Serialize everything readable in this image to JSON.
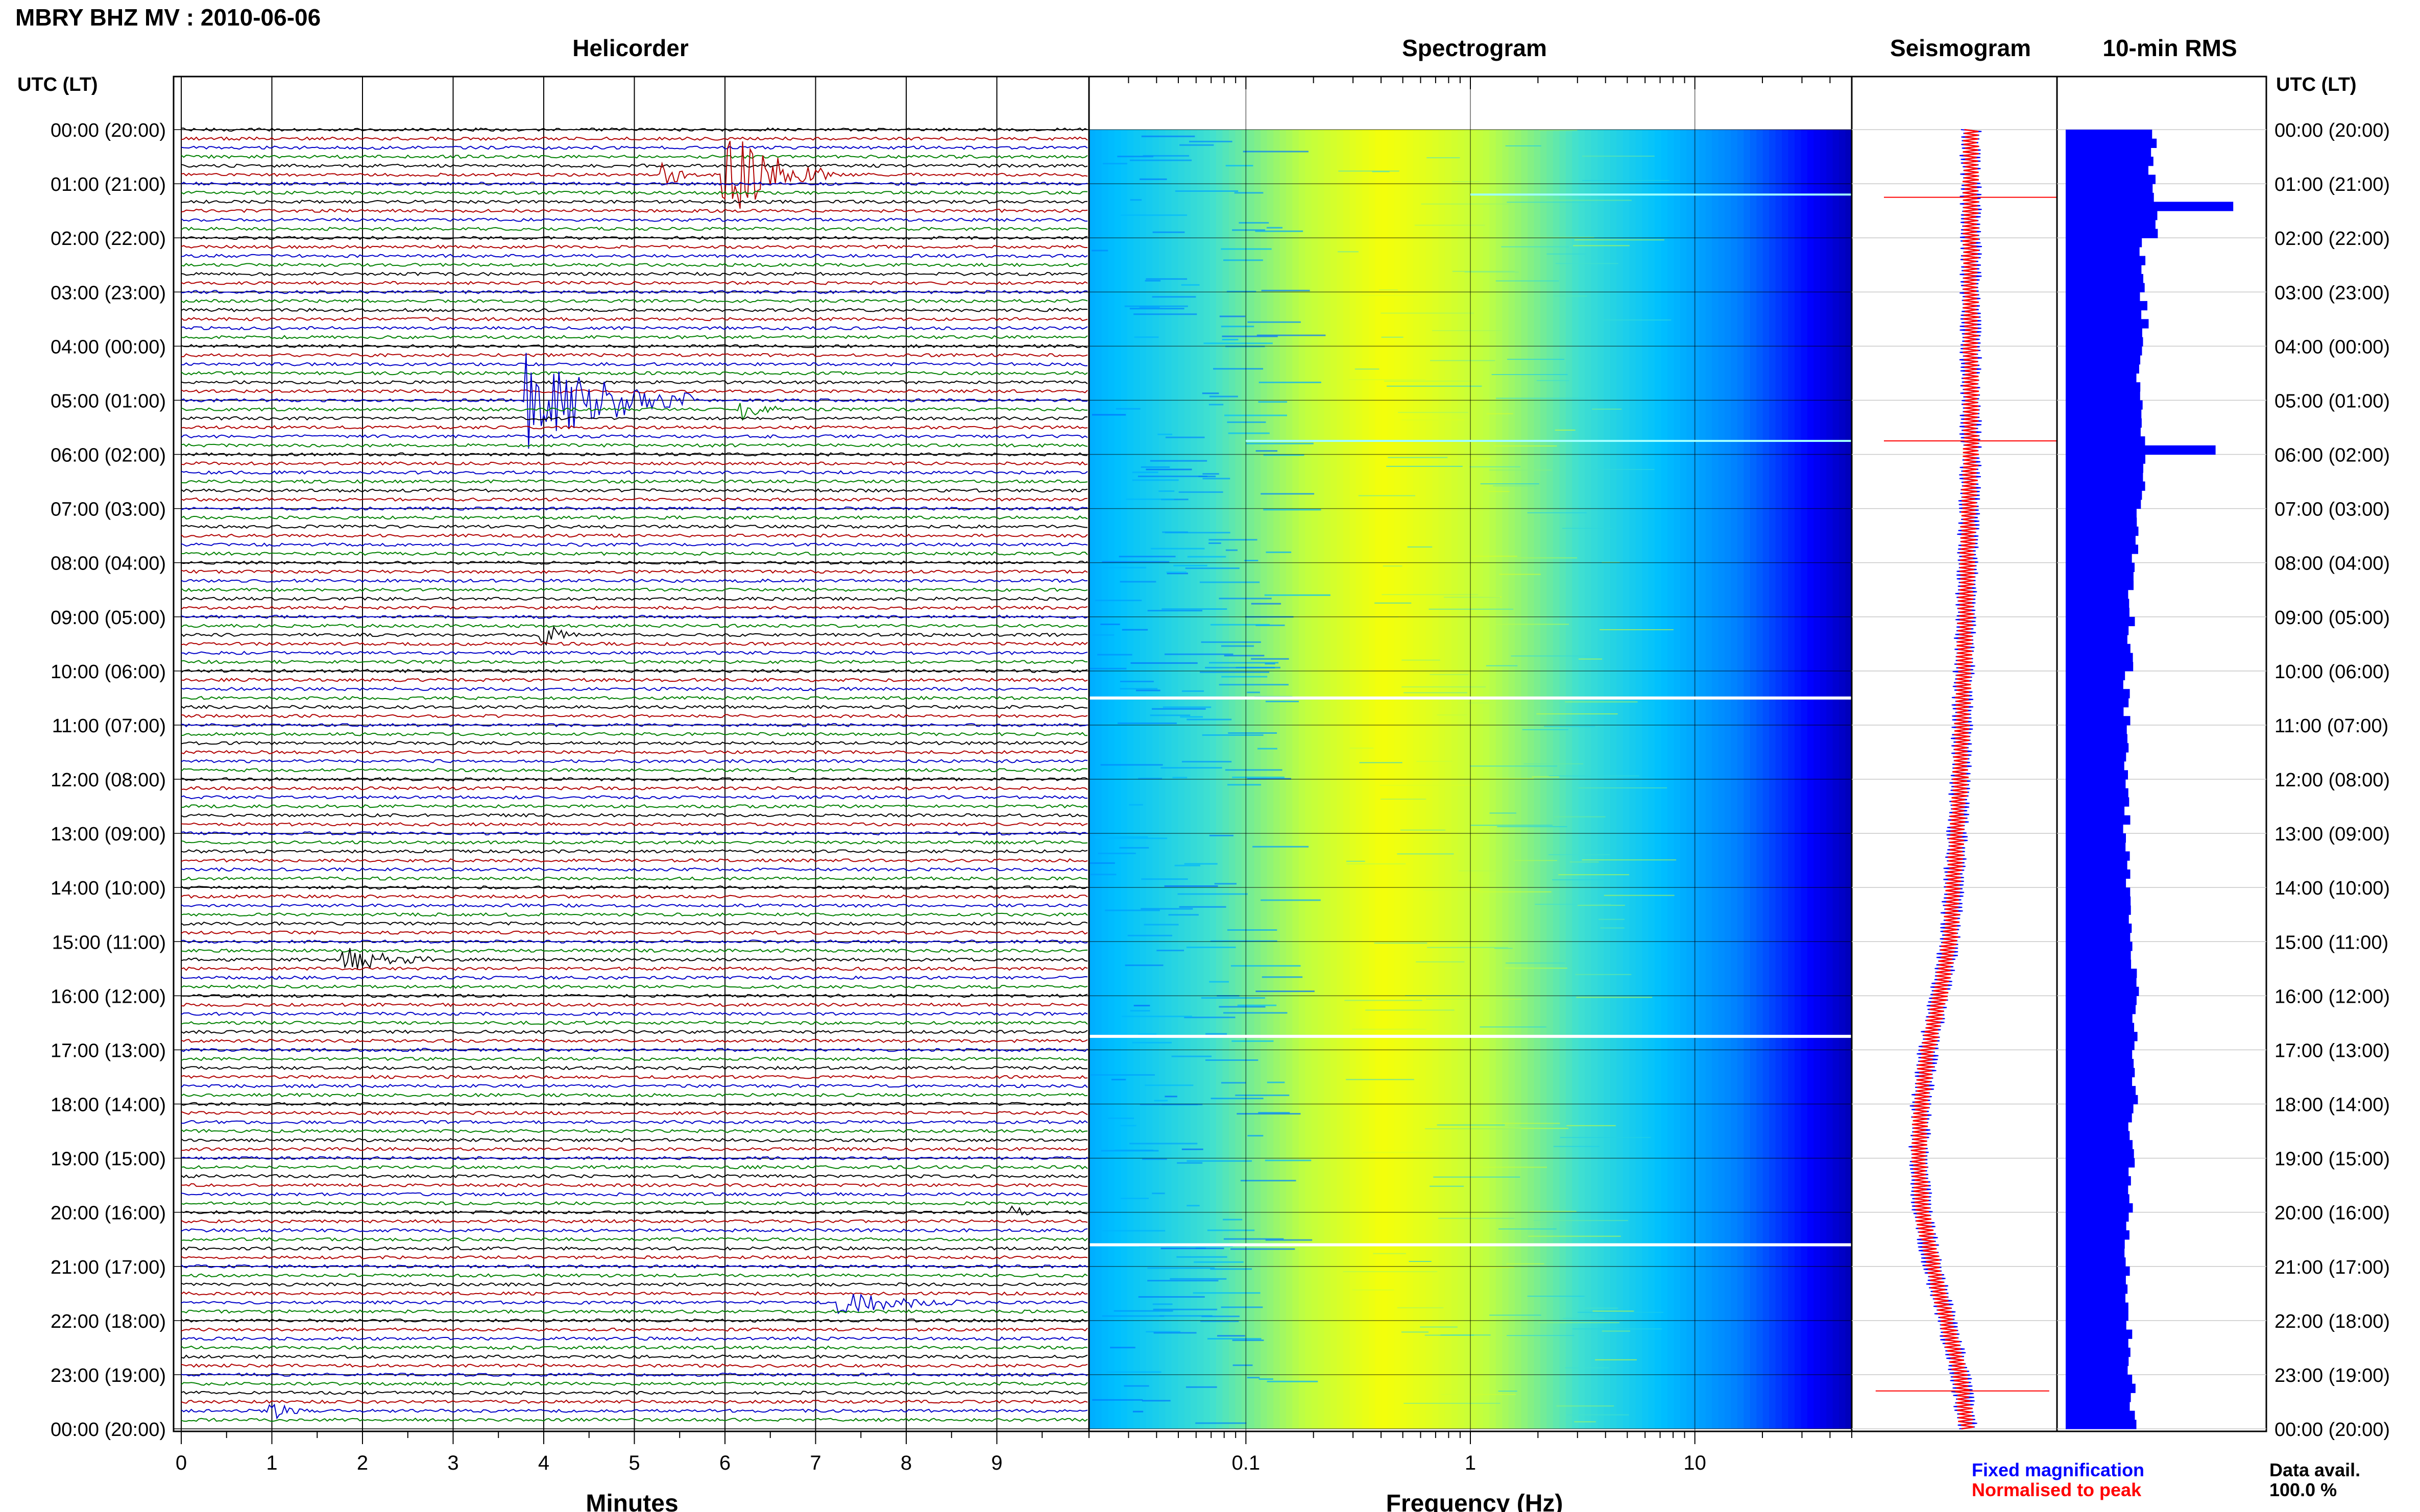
{
  "title": "MBRY BHZ MV : 2010-06-06",
  "panels": {
    "helicorder": "Helicorder",
    "spectrogram": "Spectrogram",
    "seismogram": "Seismogram",
    "rms": "10-min RMS"
  },
  "axis_header": "UTC (LT)",
  "colors": {
    "trace_cycle": [
      "#000000",
      "#b00000",
      "#0000c8",
      "#008000"
    ],
    "fixed": "#0000ff",
    "normalised": "#ff0000",
    "rms_bar": "#0000ff",
    "gap": "#ffffff"
  },
  "legend": {
    "fixed": "Fixed magnification",
    "normalised": "Normalised to peak"
  },
  "data_avail": {
    "label": "Data avail.",
    "value": "100.0 %"
  },
  "chart_data": [
    {
      "type": "line",
      "name": "Helicorder",
      "xlabel": "Minutes",
      "x_ticks": [
        "0",
        "1",
        "2",
        "3",
        "4",
        "5",
        "6",
        "7",
        "8",
        "9"
      ],
      "xlim": [
        0,
        10
      ],
      "y_tick_labels": [
        "00:00 (20:00)",
        "01:00 (21:00)",
        "02:00 (22:00)",
        "03:00 (23:00)",
        "04:00 (00:00)",
        "05:00 (01:00)",
        "06:00 (02:00)",
        "07:00 (03:00)",
        "08:00 (04:00)",
        "09:00 (05:00)",
        "10:00 (06:00)",
        "11:00 (07:00)",
        "12:00 (08:00)",
        "13:00 (09:00)",
        "14:00 (10:00)",
        "15:00 (11:00)",
        "16:00 (12:00)",
        "17:00 (13:00)",
        "18:00 (14:00)",
        "19:00 (15:00)",
        "20:00 (16:00)",
        "21:00 (17:00)",
        "22:00 (18:00)",
        "23:00 (19:00)",
        "00:00 (20:00)"
      ],
      "rows": 144,
      "row_minutes": 10,
      "events": [
        {
          "row": 5,
          "minute": 6.0,
          "amplitude": 3.5,
          "duration_min": 1.2
        },
        {
          "row": 5,
          "minute": 5.35,
          "amplitude": 1.2,
          "duration_min": 0.3
        },
        {
          "row": 30,
          "minute": 3.85,
          "amplitude": 3.8,
          "duration_min": 1.8
        },
        {
          "row": 31,
          "minute": 6.2,
          "amplitude": 0.8,
          "duration_min": 0.4
        },
        {
          "row": 56,
          "minute": 4.0,
          "amplitude": 0.9,
          "duration_min": 0.4
        },
        {
          "row": 92,
          "minute": 1.8,
          "amplitude": 0.9,
          "duration_min": 1.0
        },
        {
          "row": 120,
          "minute": 9.2,
          "amplitude": 0.5,
          "duration_min": 0.3
        },
        {
          "row": 130,
          "minute": 7.3,
          "amplitude": 0.9,
          "duration_min": 1.3
        },
        {
          "row": 142,
          "minute": 1.0,
          "amplitude": 0.6,
          "duration_min": 0.4
        }
      ]
    },
    {
      "type": "heatmap",
      "name": "Spectrogram",
      "xlabel": "Frequency (Hz)",
      "x_scale": "log",
      "xlim": [
        0.02,
        50
      ],
      "x_tick_labels": [
        "0.1",
        "1",
        "10"
      ],
      "colormap": [
        "#000080",
        "#0000ff",
        "#0080ff",
        "#00c0ff",
        "#40e0d0",
        "#c0ff40",
        "#ffff00"
      ],
      "peak_frequency_hz": 0.4,
      "gaps_hours": [
        10.5,
        16.75,
        20.6
      ],
      "spikes": [
        {
          "hour": 1.2,
          "fmin": 1,
          "fmax": 50
        },
        {
          "hour": 5.75,
          "fmin": 0.1,
          "fmax": 50
        }
      ]
    },
    {
      "type": "line",
      "name": "Seismogram",
      "series": [
        "Fixed magnification",
        "Normalised to peak"
      ],
      "y_hours": [
        0,
        2,
        4,
        6,
        8,
        10,
        12,
        13,
        14,
        15,
        16,
        17,
        18,
        19,
        20,
        21,
        22,
        23,
        24
      ],
      "offset": [
        0,
        0,
        0,
        0,
        -0.05,
        -0.1,
        -0.15,
        -0.2,
        -0.25,
        -0.3,
        -0.45,
        -0.62,
        -0.72,
        -0.75,
        -0.7,
        -0.55,
        -0.35,
        -0.15,
        -0.05
      ],
      "spikes_hours": [
        1.25,
        5.75,
        23.3
      ]
    },
    {
      "type": "bar",
      "name": "10-min RMS",
      "orientation": "horizontal",
      "hours": [
        0,
        1,
        1.25,
        1.5,
        2,
        4,
        5,
        5.5,
        5.75,
        6,
        7,
        8,
        10,
        12,
        14,
        15,
        15.75,
        16,
        18,
        20,
        22,
        23,
        24
      ],
      "values": [
        1.0,
        1.0,
        1.9,
        1.0,
        0.9,
        0.85,
        0.85,
        0.9,
        1.7,
        0.9,
        0.8,
        0.75,
        0.7,
        0.7,
        0.75,
        0.78,
        0.85,
        0.8,
        0.75,
        0.7,
        0.72,
        0.78,
        0.8
      ],
      "xlim": [
        0,
        2.2
      ]
    }
  ]
}
